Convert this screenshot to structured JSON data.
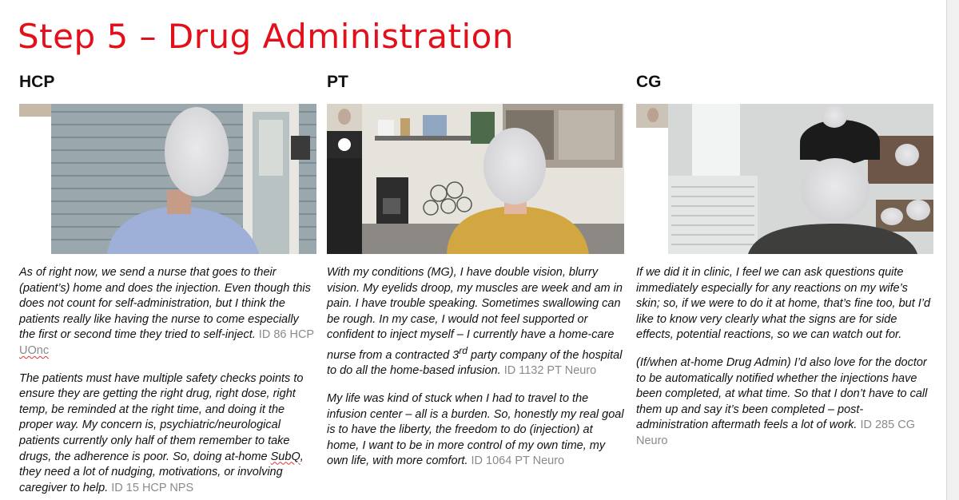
{
  "page": {
    "title": "Step 5 – Drug Administration"
  },
  "columns": [
    {
      "header": "HCP",
      "quotes": [
        {
          "text": "As of right now, we send a nurse that goes to their (patient’s) home and does the injection. Even though this does not count for self-administration, but I think the patients really like having the nurse to come especially the first or second time they tried to self-inject.",
          "id_prefix": "ID 86 HCP",
          "id_suffix": "UOnc"
        },
        {
          "text_before": "The patients must have multiple safety checks points to ensure they are getting the right drug, right dose, right temp, be reminded at the right time, and doing it the proper way. My concern is, psychiatric/neurological patients currently only half of them remember to take drugs, the adherence is poor. So, doing at-home",
          "text_flag": "SubQ",
          "text_after": ", they need a lot of nudging, motivations, or involving caregiver to help.",
          "id": "ID 15 HCP NPS"
        }
      ]
    },
    {
      "header": "PT",
      "quotes": [
        {
          "text_before": "With my conditions (MG), I have double vision, blurry vision. My eyelids droop, my muscles are week and am in pain. I have trouble speaking. Sometimes swallowing can be rough. In my case, I would not feel supported or confident to inject myself – I currently have a home-care nurse from a contracted 3",
          "sup": "rd",
          "text_after": " party company of the hospital to do all the home-based infusion.",
          "id": "ID 1132 PT Neuro"
        },
        {
          "text": "My life was kind of stuck when I had to travel to the infusion center – all is a burden. So, honestly my real goal is to have the liberty, the freedom to do (injection) at home, I want to be in more control of my own time, my own life, with more comfort.",
          "id": "ID 1064 PT Neuro"
        }
      ]
    },
    {
      "header": "CG",
      "quotes": [
        {
          "text": "If we did it in clinic, I feel we can ask questions quite immediately especially for any reactions on my wife’s skin; so, if we were to do it at home, that’s fine too, but I’d like to know very clearly what the signs are for side effects, potential reactions, so we can watch out for.",
          "id": ""
        },
        {
          "text": "(If/when at-home Drug Admin) I’d also love for the doctor to be automatically notified whether the injections have been completed, at what time. So that I don’t have to call them up and say it’s been completed – post-administration aftermath feels a lot of work.",
          "id": "ID 285 CG Neuro"
        }
      ]
    }
  ],
  "colors": {
    "title": "#e3101b",
    "id_text": "#8a8a8a",
    "body_text": "#111111"
  },
  "icons": {
    "pt_tile": "user-avatar-icon"
  }
}
